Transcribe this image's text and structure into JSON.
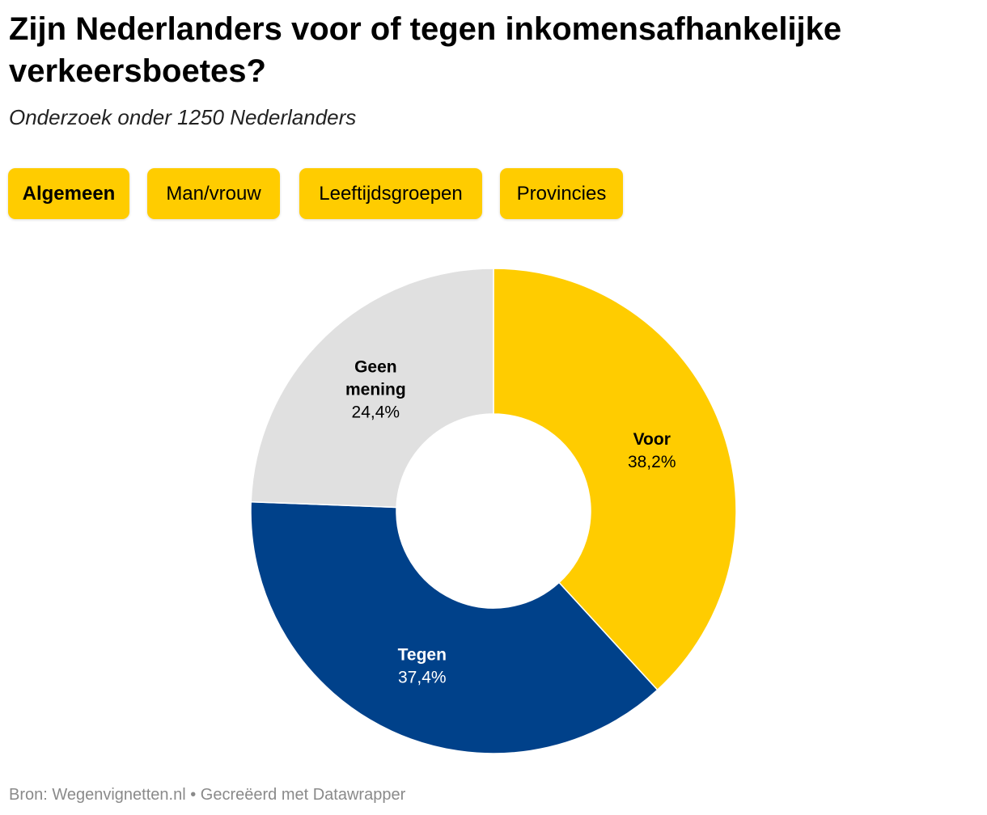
{
  "header": {
    "title": "Zijn Nederlanders voor of tegen inkomensafhankelijke verkeersboetes?",
    "subtitle": "Onderzoek onder 1250 Nederlanders"
  },
  "tabs": [
    {
      "label": "Algemeen",
      "active": true
    },
    {
      "label": "Man/vrouw",
      "active": false
    },
    {
      "label": "Leeftijdsgroepen",
      "active": false
    },
    {
      "label": "Provincies",
      "active": false
    }
  ],
  "chart_data": {
    "type": "pie",
    "variant": "donut",
    "title": "Zijn Nederlanders voor of tegen inkomensafhankelijke verkeersboetes?",
    "subtitle": "Onderzoek onder 1250 Nederlanders",
    "slices": [
      {
        "name": "Voor",
        "name_lines": [
          "Voor"
        ],
        "value": 38.2,
        "label": "38,2%",
        "color": "#ffcc00",
        "text_color": "#000000"
      },
      {
        "name": "Tegen",
        "name_lines": [
          "Tegen"
        ],
        "value": 37.4,
        "label": "37,4%",
        "color": "#00418a",
        "text_color": "#ffffff"
      },
      {
        "name": "Geen mening",
        "name_lines": [
          "Geen",
          "mening"
        ],
        "value": 24.4,
        "label": "24,4%",
        "color": "#e0e0e0",
        "text_color": "#000000"
      }
    ]
  },
  "footer": {
    "source": "Bron: Wegenvignetten.nl • Gecreëerd met Datawrapper"
  }
}
